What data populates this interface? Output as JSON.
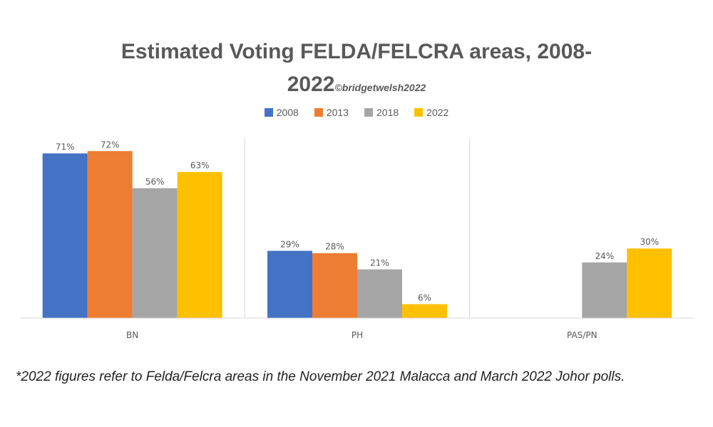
{
  "chart_data": {
    "type": "bar",
    "title": "Estimated Voting FELDA/FELCRA areas, 2008-2022",
    "title_line1": "Estimated Voting FELDA/FELCRA areas, 2008-",
    "title_line2": "2022",
    "credit": "©bridgetwelsh2022",
    "categories": [
      "BN",
      "PH",
      "PAS/PN"
    ],
    "series": [
      {
        "name": "2008",
        "color": "#4472C4",
        "values": [
          71,
          29,
          null
        ]
      },
      {
        "name": "2013",
        "color": "#ED7D31",
        "values": [
          72,
          28,
          null
        ]
      },
      {
        "name": "2018",
        "color": "#A5A5A5",
        "values": [
          56,
          21,
          24
        ]
      },
      {
        "name": "2022",
        "color": "#FFC000",
        "values": [
          63,
          6,
          30
        ]
      }
    ],
    "value_suffix": "%",
    "ylim": [
      0,
      80
    ],
    "grid": false,
    "legend_position": "top"
  },
  "footnote": "*2022 figures refer to Felda/Felcra areas in the November 2021 Malacca and March 2022 Johor polls."
}
